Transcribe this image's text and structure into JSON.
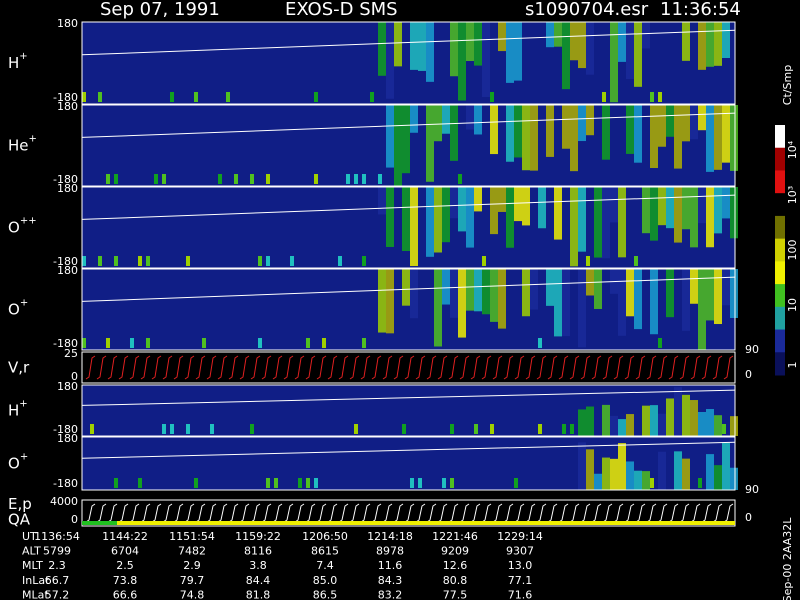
{
  "header": {
    "date": "Sep 07, 1991",
    "instrument": "EXOS-D SMS",
    "file": "s1090704.esr",
    "time": "11:36:54"
  },
  "panels": [
    {
      "label": "H",
      "sup": "+",
      "top": "180",
      "bottom": "-180"
    },
    {
      "label": "He",
      "sup": "+",
      "top": "180",
      "bottom": "-180"
    },
    {
      "label": "O",
      "sup": "++",
      "top": "180",
      "bottom": "-180"
    },
    {
      "label": "O",
      "sup": "+",
      "top": "180",
      "bottom": "-180",
      "right": "90"
    },
    {
      "label": "V,r",
      "top": "25",
      "bottom": "0",
      "right": "0"
    },
    {
      "label": "H",
      "sup": "+",
      "top": "180",
      "bottom": "-180"
    },
    {
      "label": "O",
      "sup": "+",
      "top": "180",
      "bottom": "-180",
      "right": "90"
    },
    {
      "label": "E,p",
      "label2": "QA",
      "top": "4000",
      "bottom": "0",
      "right": "0"
    }
  ],
  "colorbar": {
    "title": "Ct/Smp",
    "labels": [
      "10⁴",
      "10³",
      "100",
      "10",
      "1"
    ]
  },
  "side_note": "Sep-00  2AA32L",
  "table": {
    "rows": [
      [
        "UT",
        "1136:54",
        "1144:22",
        "1151:54",
        "1159:22",
        "1206:50",
        "1214:18",
        "1221:46",
        "1229:14"
      ],
      [
        "ALT",
        "5799",
        "6704",
        "7482",
        "8116",
        "8615",
        "8978",
        "9209",
        "9307"
      ],
      [
        "MLT",
        "2.3",
        "2.5",
        "2.9",
        "3.8",
        "7.4",
        "11.6",
        "12.6",
        "13.0"
      ],
      [
        "InLat",
        "66.7",
        "73.8",
        "79.7",
        "84.4",
        "85.0",
        "84.3",
        "80.8",
        "77.1"
      ],
      [
        "MLat",
        "57.2",
        "66.6",
        "74.8",
        "81.8",
        "86.5",
        "83.2",
        "77.5",
        "71.6"
      ]
    ]
  }
}
